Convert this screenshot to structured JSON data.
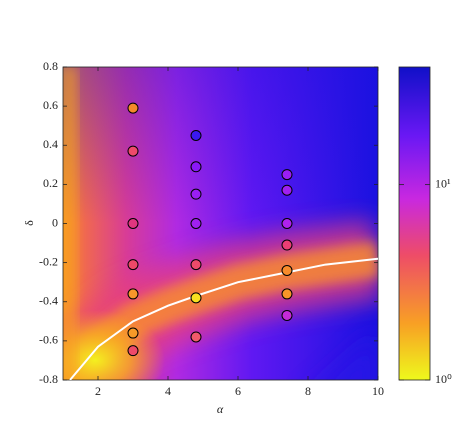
{
  "chart_data": {
    "type": "scatter",
    "xlabel": "α",
    "ylabel": "δ",
    "xlim": [
      1,
      10
    ],
    "ylim": [
      -0.8,
      0.8
    ],
    "xticks": [
      2,
      4,
      6,
      8,
      10
    ],
    "yticks": [
      -0.8,
      -0.6,
      -0.4,
      -0.2,
      0,
      0.2,
      0.4,
      0.6,
      0.8
    ],
    "points": {
      "x": [
        3,
        3,
        3,
        3,
        3,
        3,
        3,
        4.8,
        4.8,
        4.8,
        4.8,
        4.8,
        4.8,
        4.8,
        7.4,
        7.4,
        7.4,
        7.4,
        7.4,
        7.4,
        7.4
      ],
      "y": [
        0.59,
        0.37,
        0,
        -0.21,
        -0.36,
        -0.56,
        -0.65,
        0.45,
        0.29,
        0.15,
        0,
        -0.21,
        -0.38,
        -0.58,
        0.25,
        0.17,
        0,
        -0.11,
        -0.24,
        -0.36,
        -0.47
      ],
      "colors": [
        "#f58a2a",
        "#ee4a6a",
        "#e0367f",
        "#ec4868",
        "#f7962a",
        "#f79a28",
        "#ee4a6a",
        "#3a18f0",
        "#8a18f8",
        "#9a1ef4",
        "#a020f0",
        "#ee4a6a",
        "#f8e020",
        "#f05a6a",
        "#9a1ef4",
        "#a020f0",
        "#ae22ee",
        "#ea3e74",
        "#f88c2c",
        "#f79628",
        "#c42ad8"
      ],
      "edgecolor": "#000000"
    },
    "curve": {
      "color": "#ffffff",
      "x": [
        1.2,
        2,
        3,
        4,
        4.8,
        6,
        7.4,
        8.5,
        10
      ],
      "y": [
        -0.8,
        -0.63,
        -0.5,
        -0.42,
        -0.37,
        -0.3,
        -0.25,
        -0.21,
        -0.18
      ]
    },
    "colorbar": {
      "log": true,
      "ylim": [
        1,
        40
      ],
      "yticks": [
        {
          "value": 1,
          "label": "10⁰"
        },
        {
          "value": 10,
          "label": "10¹"
        }
      ]
    }
  }
}
